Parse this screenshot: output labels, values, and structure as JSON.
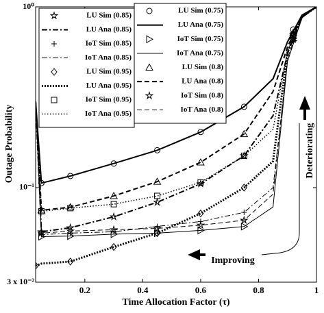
{
  "chart_data": {
    "type": "line",
    "x_label": "Time Allocation Factor (τ)",
    "y_label": "Outage Probability",
    "log_y": true,
    "xlim": [
      0.03,
      1
    ],
    "ylim": [
      0.03,
      1
    ],
    "xticks": [
      0.2,
      0.4,
      0.6,
      0.8,
      1
    ],
    "yticks": [
      {
        "value": 0.03,
        "label": "3 x 10⁻²"
      },
      {
        "value": 0.1,
        "label": "10⁻¹"
      },
      {
        "value": 1,
        "label": "10⁰"
      }
    ],
    "annotations": [
      "Deteriorating",
      "Improving"
    ],
    "series": [
      {
        "name": "LU Sim (0.85)",
        "marker": "star",
        "x": [
          0.05,
          0.15,
          0.3,
          0.45,
          0.6,
          0.75,
          0.92
        ],
        "values": [
          0.057,
          0.06,
          0.069,
          0.083,
          0.105,
          0.15,
          0.7
        ]
      },
      {
        "name": "LU Ana (0.85)",
        "dash": "8 3 2 3",
        "width": 2,
        "x": [
          0.03,
          0.05,
          0.15,
          0.3,
          0.45,
          0.6,
          0.75,
          0.85,
          0.9,
          0.95,
          1
        ],
        "values": [
          0.3,
          0.057,
          0.06,
          0.069,
          0.083,
          0.105,
          0.15,
          0.25,
          0.55,
          0.88,
          1
        ]
      },
      {
        "name": "IoT Sim (0.85)",
        "marker": "plus",
        "x": [
          0.05,
          0.15,
          0.3,
          0.45,
          0.6,
          0.75,
          0.92
        ],
        "values": [
          0.055,
          0.056,
          0.057,
          0.061,
          0.065,
          0.073,
          0.65
        ]
      },
      {
        "name": "IoT Ana (0.85)",
        "dash": "8 3 2 3",
        "width": 1,
        "x": [
          0.03,
          0.05,
          0.15,
          0.3,
          0.45,
          0.6,
          0.75,
          0.85,
          0.9,
          0.95,
          1
        ],
        "values": [
          0.3,
          0.055,
          0.056,
          0.057,
          0.061,
          0.065,
          0.073,
          0.1,
          0.5,
          0.87,
          1
        ]
      },
      {
        "name": "LU Sim (0.95)",
        "marker": "diamond",
        "x": [
          0.03,
          0.15,
          0.3,
          0.45,
          0.6,
          0.75,
          0.92
        ],
        "values": [
          0.037,
          0.039,
          0.047,
          0.056,
          0.072,
          0.1,
          0.7
        ]
      },
      {
        "name": "LU Ana (0.95)",
        "dash": "2 2",
        "width": 3,
        "x": [
          0.03,
          0.05,
          0.15,
          0.3,
          0.45,
          0.6,
          0.75,
          0.85,
          0.9,
          0.95,
          1
        ],
        "values": [
          0.037,
          0.038,
          0.039,
          0.047,
          0.056,
          0.072,
          0.1,
          0.14,
          0.56,
          0.88,
          1
        ]
      },
      {
        "name": "IoT Sim (0.95)",
        "marker": "square",
        "x": [
          0.05,
          0.15,
          0.3,
          0.45,
          0.6,
          0.75,
          0.92
        ],
        "values": [
          0.074,
          0.077,
          0.081,
          0.09,
          0.107,
          0.15,
          0.7
        ]
      },
      {
        "name": "IoT Ana (0.95)",
        "dash": "1.5 2.5",
        "width": 1.5,
        "x": [
          0.03,
          0.05,
          0.15,
          0.3,
          0.45,
          0.6,
          0.75,
          0.85,
          0.9,
          0.95,
          1
        ],
        "values": [
          0.3,
          0.074,
          0.077,
          0.081,
          0.09,
          0.107,
          0.15,
          0.21,
          0.57,
          0.88,
          1
        ]
      },
      {
        "name": "LU Sim (0.75)",
        "marker": "circle",
        "x": [
          0.05,
          0.15,
          0.3,
          0.45,
          0.6,
          0.75,
          0.92
        ],
        "values": [
          0.106,
          0.116,
          0.136,
          0.161,
          0.203,
          0.28,
          0.75
        ]
      },
      {
        "name": "LU Ana (0.75)",
        "dash": "",
        "width": 2,
        "x": [
          0.03,
          0.05,
          0.15,
          0.3,
          0.45,
          0.6,
          0.75,
          0.85,
          0.9,
          0.95,
          1
        ],
        "values": [
          0.3,
          0.106,
          0.116,
          0.136,
          0.161,
          0.203,
          0.28,
          0.4,
          0.64,
          0.9,
          1
        ]
      },
      {
        "name": "IoT Sim (0.75)",
        "marker": "triangle-right",
        "x": [
          0.05,
          0.15,
          0.3,
          0.45,
          0.6,
          0.75,
          0.92
        ],
        "values": [
          0.0536,
          0.054,
          0.0553,
          0.056,
          0.058,
          0.0609,
          0.65
        ]
      },
      {
        "name": "IoT Ana (0.75)",
        "dash": "",
        "width": 1,
        "x": [
          0.03,
          0.05,
          0.15,
          0.3,
          0.45,
          0.6,
          0.75,
          0.85,
          0.9,
          0.95,
          1
        ],
        "values": [
          0.3,
          0.0536,
          0.054,
          0.0553,
          0.056,
          0.058,
          0.0609,
          0.0782,
          0.5,
          0.87,
          1
        ]
      },
      {
        "name": "LU Sim (0.8)",
        "marker": "triangle",
        "x": [
          0.05,
          0.15,
          0.3,
          0.45,
          0.6,
          0.75,
          0.92
        ],
        "values": [
          0.075,
          0.078,
          0.09,
          0.108,
          0.138,
          0.198,
          0.72
        ]
      },
      {
        "name": "LU Ana (0.8)",
        "dash": "7 4",
        "width": 2,
        "x": [
          0.03,
          0.05,
          0.15,
          0.3,
          0.45,
          0.6,
          0.75,
          0.85,
          0.9,
          0.95,
          1
        ],
        "values": [
          0.3,
          0.075,
          0.078,
          0.09,
          0.108,
          0.138,
          0.198,
          0.34,
          0.6,
          0.89,
          1
        ]
      },
      {
        "name": "IoT Sim (0.8)",
        "marker": "star",
        "x": [
          0.05,
          0.15,
          0.3,
          0.45,
          0.6,
          0.75,
          0.92
        ],
        "values": [
          0.056,
          0.0575,
          0.0585,
          0.0595,
          0.062,
          0.066,
          0.66
        ]
      },
      {
        "name": "IoT Ana (0.8)",
        "dash": "7 4",
        "width": 1,
        "x": [
          0.03,
          0.05,
          0.15,
          0.3,
          0.45,
          0.6,
          0.75,
          0.85,
          0.9,
          0.95,
          1
        ],
        "values": [
          0.3,
          0.056,
          0.0575,
          0.0585,
          0.0595,
          0.062,
          0.066,
          0.092,
          0.52,
          0.87,
          1
        ]
      }
    ]
  }
}
